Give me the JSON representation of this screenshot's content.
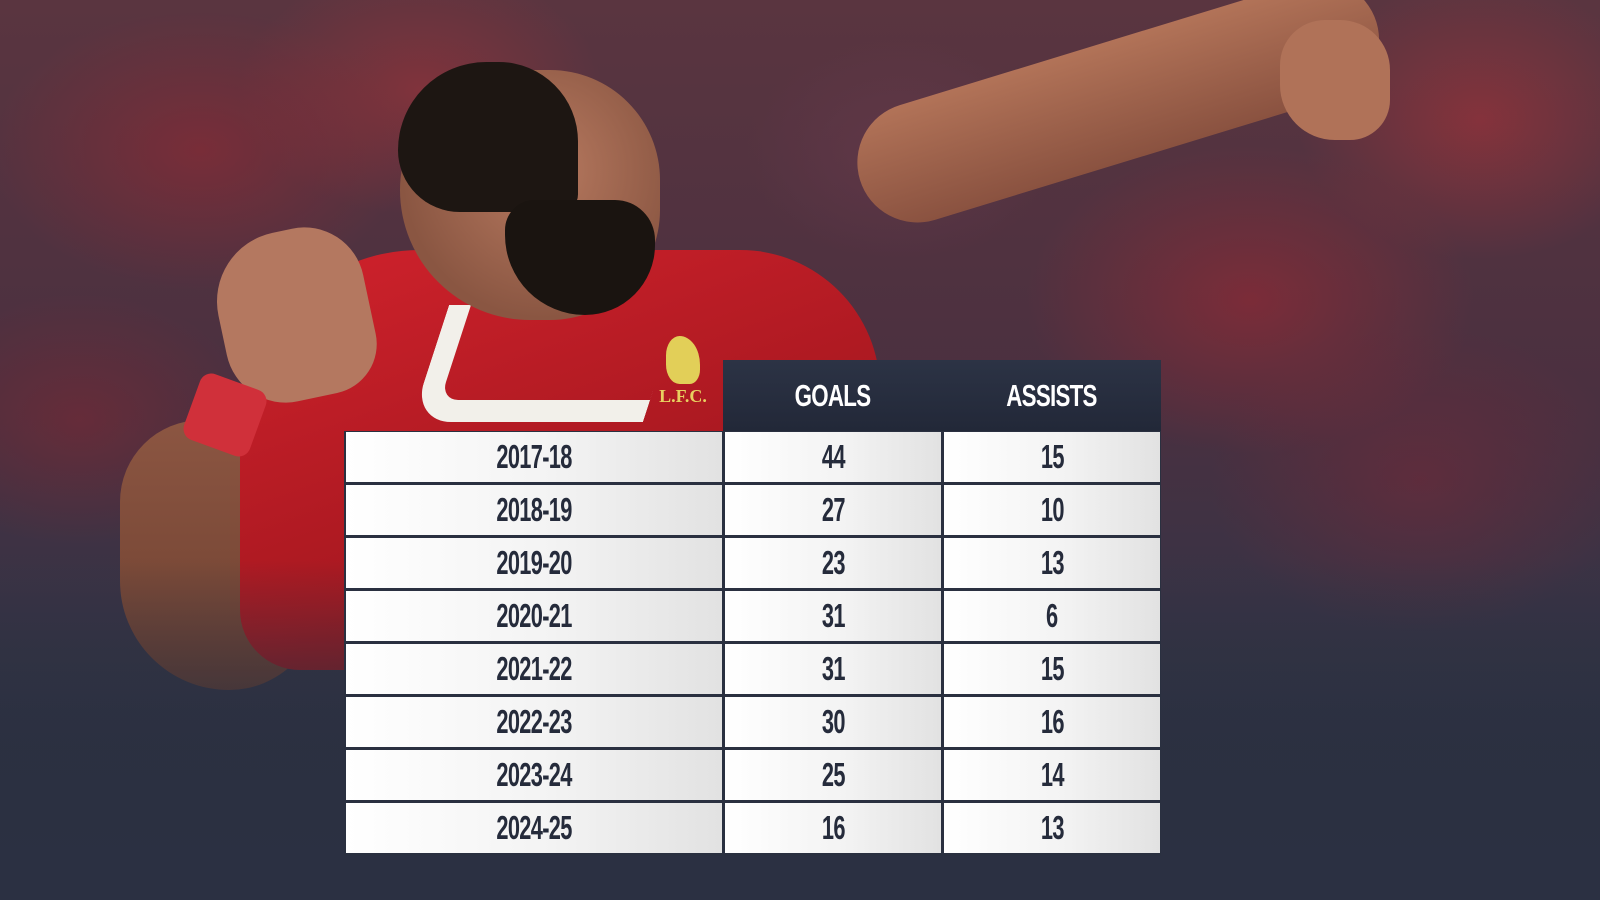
{
  "graphic": {
    "background": "Liverpool player celebrating in front of stadium crowd",
    "crest_text": "L.F.C.",
    "colors": {
      "header_bg": "#262c3c",
      "header_text": "#ffffff",
      "cell_bg": "#f2f2f2",
      "cell_text": "#252b3b",
      "grid_line": "#2a3040",
      "footer_bg": "#2b3042",
      "shirt_red": "#c8202a",
      "crest_gold": "#e2cf58"
    }
  },
  "table": {
    "headers": {
      "season": "",
      "goals": "GOALS",
      "assists": "ASSISTS"
    },
    "rows": [
      {
        "season": "2017-18",
        "goals": "44",
        "assists": "15"
      },
      {
        "season": "2018-19",
        "goals": "27",
        "assists": "10"
      },
      {
        "season": "2019-20",
        "goals": "23",
        "assists": "13"
      },
      {
        "season": "2020-21",
        "goals": "31",
        "assists": "6"
      },
      {
        "season": "2021-22",
        "goals": "31",
        "assists": "15"
      },
      {
        "season": "2022-23",
        "goals": "30",
        "assists": "16"
      },
      {
        "season": "2023-24",
        "goals": "25",
        "assists": "14"
      },
      {
        "season": "2024-25",
        "goals": "16",
        "assists": "13"
      }
    ]
  }
}
